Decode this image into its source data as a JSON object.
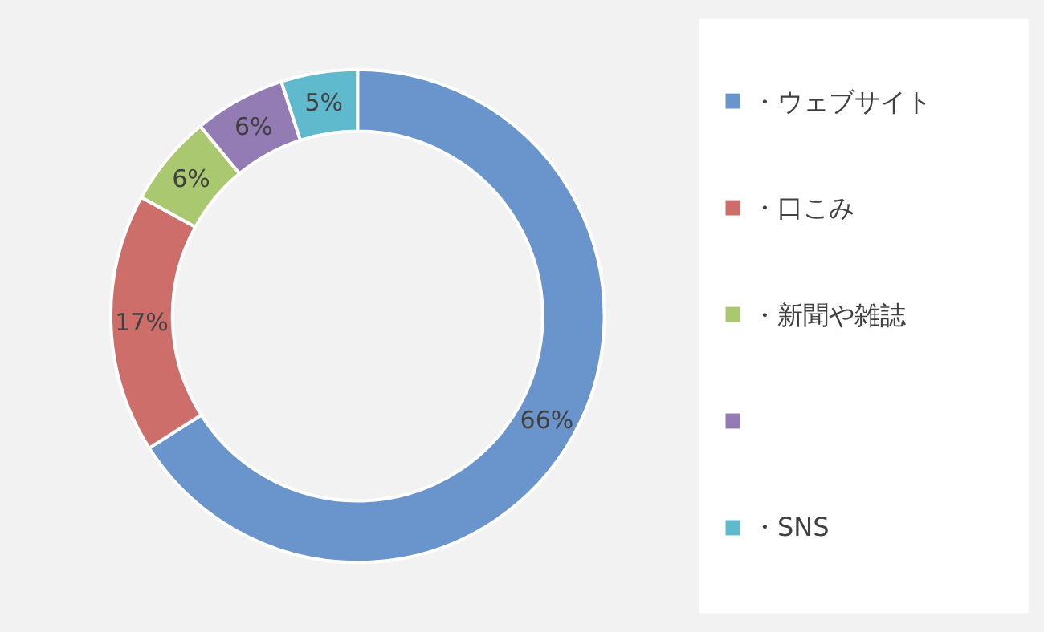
{
  "chart_data": {
    "type": "donut",
    "categories": [
      "・ウェブサイト",
      "・口こみ",
      "・新聞や雑誌",
      null,
      "・SNS"
    ],
    "values": [
      66,
      17,
      6,
      6,
      5
    ],
    "value_labels": [
      "66%",
      "17%",
      "6%",
      "6%",
      "5%"
    ],
    "colors": [
      "#6a94cc",
      "#cd6e6b",
      "#aac86f",
      "#937cb4",
      "#5fbacd"
    ],
    "legend": "right"
  }
}
